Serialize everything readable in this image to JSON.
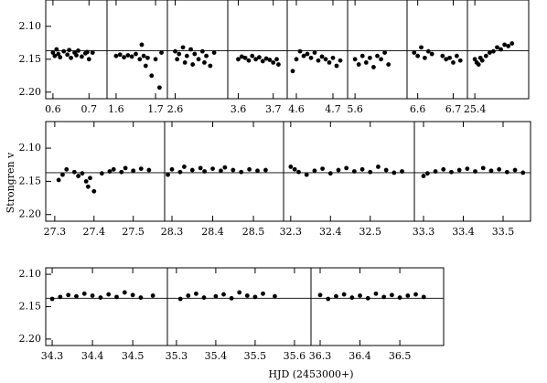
{
  "y_label": "Strongren v",
  "x_label": "HJD (2453000+)",
  "chart_data": [
    {
      "type": "scatter",
      "xlim": [
        0.58,
        0.75
      ],
      "ylim": [
        2.21,
        2.06
      ],
      "xticks": [
        0.6,
        0.7
      ],
      "yticks": [
        {
          "value": 2.1,
          "label": "2.10"
        },
        {
          "value": 2.15,
          "label": "2.15"
        },
        {
          "value": 2.2,
          "label": "2.20"
        }
      ],
      "hline": 2.137,
      "x": [
        0.6,
        0.605,
        0.61,
        0.615,
        0.62,
        0.63,
        0.64,
        0.645,
        0.65,
        0.66,
        0.665,
        0.67,
        0.68,
        0.69,
        0.695,
        0.7,
        0.71
      ],
      "values": [
        2.14,
        2.145,
        2.135,
        2.142,
        2.147,
        2.138,
        2.143,
        2.136,
        2.148,
        2.14,
        2.144,
        2.137,
        2.146,
        2.141,
        2.139,
        2.15,
        2.14
      ]
    },
    {
      "type": "scatter",
      "xlim": [
        1.577,
        1.73
      ],
      "ylim": [
        2.21,
        2.06
      ],
      "xticks": [
        1.6,
        1.7
      ],
      "hline": 2.137,
      "x": [
        1.6,
        1.61,
        1.62,
        1.63,
        1.64,
        1.65,
        1.66,
        1.665,
        1.67,
        1.675,
        1.68,
        1.69,
        1.7,
        1.71,
        1.715
      ],
      "values": [
        2.145,
        2.143,
        2.147,
        2.144,
        2.146,
        2.142,
        2.15,
        2.128,
        2.145,
        2.16,
        2.148,
        2.175,
        2.15,
        2.193,
        2.14
      ]
    },
    {
      "type": "scatter",
      "xlim": [
        2.58,
        2.735
      ],
      "ylim": [
        2.21,
        2.06
      ],
      "xticks": [
        2.6
      ],
      "hline": 2.137,
      "x": [
        2.6,
        2.605,
        2.61,
        2.62,
        2.625,
        2.63,
        2.64,
        2.645,
        2.65,
        2.66,
        2.67,
        2.675,
        2.68,
        2.69,
        2.7
      ],
      "values": [
        2.138,
        2.15,
        2.142,
        2.132,
        2.155,
        2.145,
        2.135,
        2.158,
        2.142,
        2.15,
        2.138,
        2.155,
        2.145,
        2.16,
        2.14
      ]
    },
    {
      "type": "scatter",
      "xlim": [
        3.57,
        3.74
      ],
      "ylim": [
        2.21,
        2.06
      ],
      "xticks": [
        3.6,
        3.7
      ],
      "hline": 2.137,
      "x": [
        3.6,
        3.61,
        3.62,
        3.63,
        3.64,
        3.65,
        3.66,
        3.67,
        3.68,
        3.69,
        3.7,
        3.71,
        3.715
      ],
      "values": [
        2.15,
        2.146,
        2.148,
        2.152,
        2.145,
        2.15,
        2.147,
        2.153,
        2.149,
        2.151,
        2.155,
        2.15,
        2.158
      ]
    },
    {
      "type": "scatter",
      "xlim": [
        4.575,
        4.74
      ],
      "ylim": [
        2.21,
        2.06
      ],
      "xticks": [
        4.6,
        4.7
      ],
      "hline": 2.137,
      "x": [
        4.59,
        4.6,
        4.61,
        4.62,
        4.63,
        4.64,
        4.65,
        4.66,
        4.67,
        4.68,
        4.69,
        4.7,
        4.71,
        4.72
      ],
      "values": [
        2.168,
        2.15,
        2.138,
        2.145,
        2.142,
        2.148,
        2.14,
        2.152,
        2.146,
        2.15,
        2.155,
        2.148,
        2.16,
        2.152
      ]
    },
    {
      "type": "scatter",
      "xlim": [
        5.58,
        5.74
      ],
      "ylim": [
        2.21,
        2.06
      ],
      "xticks": [
        5.6
      ],
      "hline": 2.137,
      "x": [
        5.6,
        5.61,
        5.62,
        5.63,
        5.64,
        5.65,
        5.66,
        5.67,
        5.68,
        5.69
      ],
      "values": [
        2.15,
        2.158,
        2.145,
        2.155,
        2.148,
        2.162,
        2.145,
        2.15,
        2.14,
        2.158
      ]
    },
    {
      "type": "scatter",
      "xlim": [
        6.57,
        6.74
      ],
      "ylim": [
        2.21,
        2.06
      ],
      "xticks": [
        6.6,
        6.7
      ],
      "hline": 2.137,
      "x": [
        6.59,
        6.6,
        6.61,
        6.62,
        6.63,
        6.64,
        6.67,
        6.68,
        6.69,
        6.7,
        6.71,
        6.72
      ],
      "values": [
        2.14,
        2.145,
        2.132,
        2.148,
        2.138,
        2.142,
        2.145,
        2.15,
        2.148,
        2.155,
        2.145,
        2.152
      ]
    },
    {
      "type": "scatter",
      "xlim": [
        25.38,
        25.545
      ],
      "ylim": [
        2.21,
        2.06
      ],
      "xticks": [
        25.4
      ],
      "hline": 2.137,
      "x": [
        25.4,
        25.405,
        25.41,
        25.415,
        25.42,
        25.43,
        25.44,
        25.45,
        25.46,
        25.47,
        25.48,
        25.49,
        25.5
      ],
      "values": [
        2.15,
        2.155,
        2.158,
        2.148,
        2.152,
        2.145,
        2.14,
        2.138,
        2.132,
        2.135,
        2.128,
        2.13,
        2.126
      ]
    },
    {
      "type": "scatter",
      "xlim": [
        27.277,
        27.58
      ],
      "ylim": [
        2.21,
        2.06
      ],
      "xticks": [
        27.3,
        27.4,
        27.5
      ],
      "yticks": [
        {
          "value": 2.1,
          "label": "2.10"
        },
        {
          "value": 2.15,
          "label": "2.15"
        },
        {
          "value": 2.2,
          "label": "2.20"
        }
      ],
      "hline": 2.137,
      "x": [
        27.31,
        27.32,
        27.33,
        27.35,
        27.36,
        27.37,
        27.38,
        27.385,
        27.39,
        27.4,
        27.42,
        27.44,
        27.45,
        27.47,
        27.48,
        27.5,
        27.52,
        27.54
      ],
      "values": [
        2.148,
        2.14,
        2.132,
        2.136,
        2.142,
        2.138,
        2.15,
        2.158,
        2.145,
        2.165,
        2.138,
        2.135,
        2.132,
        2.136,
        2.13,
        2.134,
        2.131,
        2.133
      ]
    },
    {
      "type": "scatter",
      "xlim": [
        28.282,
        28.574
      ],
      "ylim": [
        2.21,
        2.06
      ],
      "xticks": [
        28.3,
        28.4,
        28.5
      ],
      "hline": 2.137,
      "x": [
        28.29,
        28.3,
        28.32,
        28.33,
        28.35,
        28.37,
        28.38,
        28.4,
        28.42,
        28.43,
        28.45,
        28.47,
        28.49,
        28.51,
        28.53
      ],
      "values": [
        2.14,
        2.132,
        2.136,
        2.128,
        2.133,
        2.13,
        2.135,
        2.131,
        2.134,
        2.129,
        2.133,
        2.136,
        2.132,
        2.134,
        2.133
      ]
    },
    {
      "type": "scatter",
      "xlim": [
        32.282,
        32.611
      ],
      "ylim": [
        2.21,
        2.06
      ],
      "xticks": [
        32.3,
        32.4,
        32.5
      ],
      "hline": 2.137,
      "x": [
        32.3,
        32.31,
        32.32,
        32.34,
        32.36,
        32.38,
        32.4,
        32.42,
        32.44,
        32.46,
        32.48,
        32.5,
        32.52,
        32.54,
        32.56,
        32.58
      ],
      "values": [
        2.128,
        2.132,
        2.136,
        2.14,
        2.134,
        2.131,
        2.138,
        2.133,
        2.13,
        2.135,
        2.132,
        2.136,
        2.128,
        2.133,
        2.137,
        2.135
      ]
    },
    {
      "type": "scatter",
      "xlim": [
        33.277,
        33.569
      ],
      "ylim": [
        2.21,
        2.06
      ],
      "xticks": [
        33.3,
        33.4,
        33.5
      ],
      "hline": 2.137,
      "x": [
        33.3,
        33.31,
        33.33,
        33.35,
        33.37,
        33.39,
        33.41,
        33.43,
        33.45,
        33.47,
        33.49,
        33.51,
        33.53,
        33.55
      ],
      "values": [
        2.142,
        2.138,
        2.135,
        2.132,
        2.136,
        2.133,
        2.131,
        2.135,
        2.13,
        2.134,
        2.132,
        2.136,
        2.133,
        2.137
      ]
    },
    {
      "type": "scatter",
      "xlim": [
        34.284,
        34.586
      ],
      "ylim": [
        2.21,
        2.09
      ],
      "xticks": [
        34.3,
        34.4,
        34.5
      ],
      "yticks": [
        {
          "value": 2.1,
          "label": "2.10"
        },
        {
          "value": 2.15,
          "label": "2.15"
        },
        {
          "value": 2.2,
          "label": "2.20"
        }
      ],
      "hline": 2.137,
      "x": [
        34.3,
        34.32,
        34.34,
        34.36,
        34.38,
        34.4,
        34.42,
        34.44,
        34.46,
        34.48,
        34.5,
        34.52,
        34.55
      ],
      "values": [
        2.138,
        2.135,
        2.132,
        2.134,
        2.13,
        2.133,
        2.136,
        2.131,
        2.135,
        2.128,
        2.132,
        2.136,
        2.133
      ]
    },
    {
      "type": "scatter",
      "xlim": [
        35.277,
        35.642
      ],
      "ylim": [
        2.21,
        2.09
      ],
      "xticks": [
        35.3,
        35.4,
        35.5,
        35.6
      ],
      "hline": 2.137,
      "x": [
        35.31,
        35.33,
        35.35,
        35.37,
        35.4,
        35.42,
        35.44,
        35.46,
        35.48,
        35.5,
        35.52,
        35.55
      ],
      "values": [
        2.138,
        2.133,
        2.13,
        2.136,
        2.134,
        2.131,
        2.137,
        2.128,
        2.133,
        2.135,
        2.13,
        2.134
      ]
    },
    {
      "type": "scatter",
      "xlim": [
        36.277,
        36.61
      ],
      "ylim": [
        2.21,
        2.09
      ],
      "xticks": [
        36.3,
        36.4,
        36.5
      ],
      "hline": 2.137,
      "x": [
        36.3,
        36.32,
        36.34,
        36.36,
        36.38,
        36.4,
        36.42,
        36.44,
        36.46,
        36.48,
        36.5,
        36.52,
        36.54,
        36.56
      ],
      "values": [
        2.132,
        2.138,
        2.134,
        2.131,
        2.136,
        2.133,
        2.137,
        2.13,
        2.135,
        2.132,
        2.136,
        2.133,
        2.131,
        2.135
      ]
    }
  ]
}
